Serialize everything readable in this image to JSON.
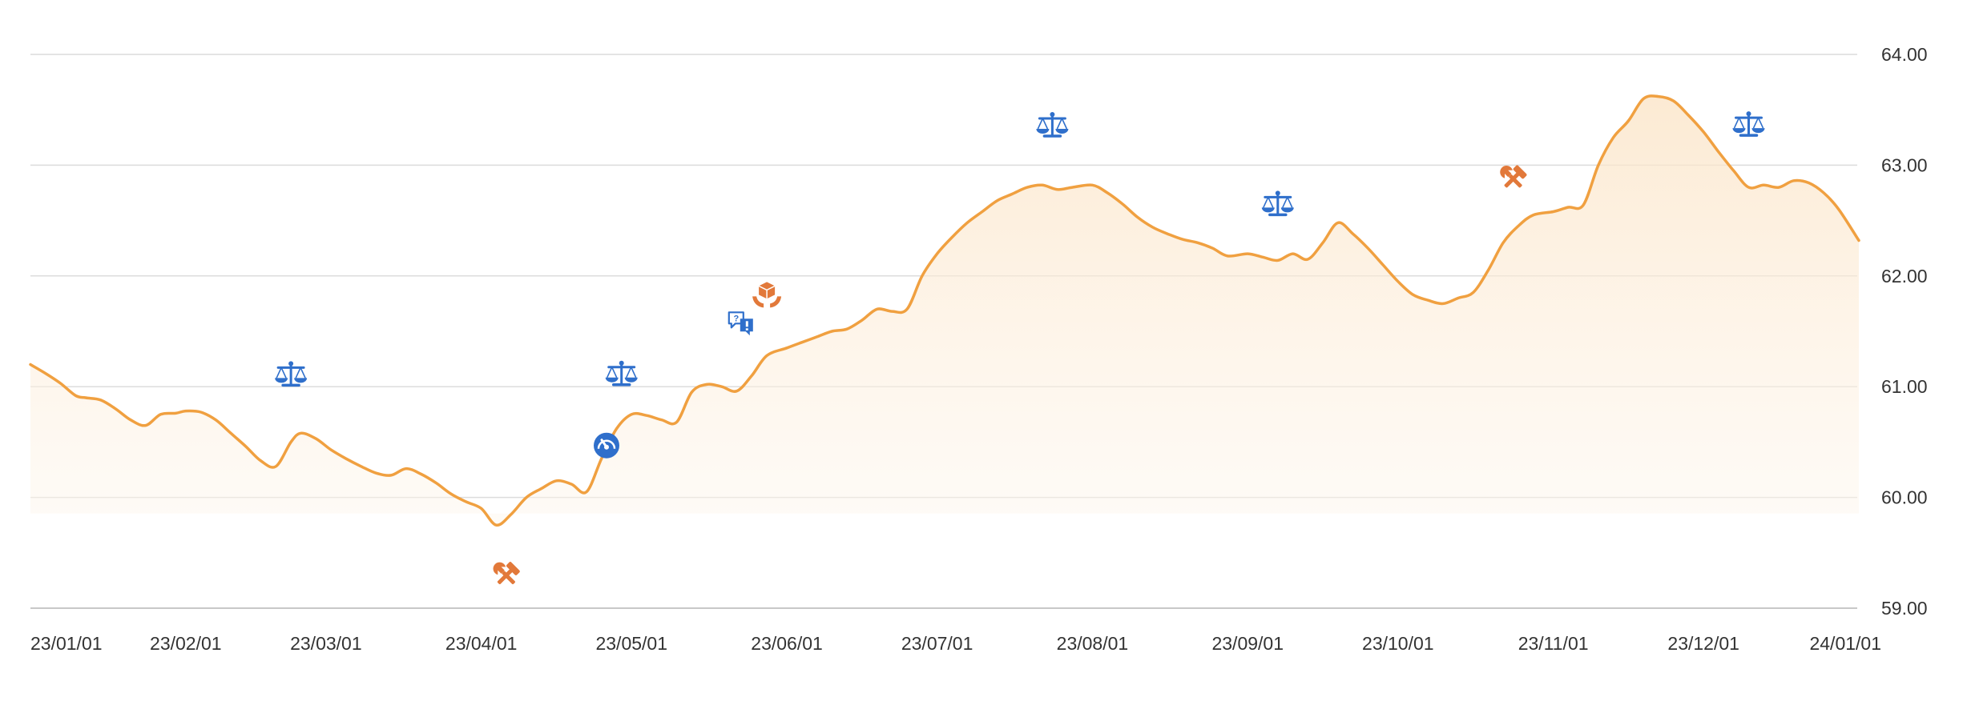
{
  "chart_data": {
    "type": "area",
    "title": "",
    "xlabel": "",
    "ylabel": "",
    "ylim": [
      59.0,
      64.0
    ],
    "y_ticks": [
      "64.00",
      "63.00",
      "62.00",
      "61.00",
      "60.00",
      "59.00"
    ],
    "y_axis_position": "right",
    "x_ticks": [
      "23/01/01",
      "23/02/01",
      "23/03/01",
      "23/04/01",
      "23/05/01",
      "23/06/01",
      "23/07/01",
      "23/08/01",
      "23/09/01",
      "23/10/01",
      "23/11/01",
      "23/12/01",
      "24/01/01"
    ],
    "grid": true,
    "legend": "none",
    "colors": {
      "line": "#f0a040",
      "fill": "#fdf0e0",
      "grid": "#dcdcdc",
      "icon_blue": "#2f6fcb",
      "icon_orange": "#e2793a"
    },
    "series": [
      {
        "x": [
          "2023-01-01",
          "2023-01-04",
          "2023-01-07",
          "2023-01-10",
          "2023-01-12",
          "2023-01-15",
          "2023-01-18",
          "2023-01-21",
          "2023-01-24",
          "2023-01-27",
          "2023-01-30",
          "2023-02-01",
          "2023-02-04",
          "2023-02-07",
          "2023-02-10",
          "2023-02-13",
          "2023-02-16",
          "2023-02-19",
          "2023-02-22",
          "2023-02-24",
          "2023-02-27",
          "2023-03-02",
          "2023-03-05",
          "2023-03-08",
          "2023-03-11",
          "2023-03-14",
          "2023-03-17",
          "2023-03-20",
          "2023-03-23",
          "2023-03-26",
          "2023-03-29",
          "2023-04-01",
          "2023-04-04",
          "2023-04-07",
          "2023-04-10",
          "2023-04-13",
          "2023-04-16",
          "2023-04-19",
          "2023-04-22",
          "2023-04-25",
          "2023-04-28",
          "2023-05-01",
          "2023-05-04",
          "2023-05-07",
          "2023-05-10",
          "2023-05-13",
          "2023-05-16",
          "2023-05-19",
          "2023-05-22",
          "2023-05-25",
          "2023-05-28",
          "2023-06-01",
          "2023-06-04",
          "2023-06-07",
          "2023-06-10",
          "2023-06-13",
          "2023-06-16",
          "2023-06-19",
          "2023-06-22",
          "2023-06-25",
          "2023-06-28",
          "2023-07-01",
          "2023-07-04",
          "2023-07-07",
          "2023-07-10",
          "2023-07-13",
          "2023-07-16",
          "2023-07-19",
          "2023-07-22",
          "2023-07-25",
          "2023-07-28",
          "2023-08-01",
          "2023-08-04",
          "2023-08-07",
          "2023-08-10",
          "2023-08-13",
          "2023-08-16",
          "2023-08-19",
          "2023-08-22",
          "2023-08-25",
          "2023-08-28",
          "2023-09-01",
          "2023-09-04",
          "2023-09-07",
          "2023-09-10",
          "2023-09-13",
          "2023-09-16",
          "2023-09-19",
          "2023-09-22",
          "2023-09-25",
          "2023-09-28",
          "2023-10-01",
          "2023-10-04",
          "2023-10-07",
          "2023-10-10",
          "2023-10-13",
          "2023-10-16",
          "2023-10-19",
          "2023-10-22",
          "2023-10-25",
          "2023-10-28",
          "2023-11-01",
          "2023-11-04",
          "2023-11-07",
          "2023-11-10",
          "2023-11-13",
          "2023-11-16",
          "2023-11-19",
          "2023-11-22",
          "2023-11-25",
          "2023-11-28",
          "2023-12-01",
          "2023-12-04",
          "2023-12-07",
          "2023-12-10",
          "2023-12-13",
          "2023-12-16",
          "2023-12-19",
          "2023-12-22",
          "2023-12-25",
          "2023-12-28",
          "2024-01-01"
        ],
        "values": [
          61.2,
          61.12,
          61.03,
          60.92,
          60.9,
          60.88,
          60.8,
          60.7,
          60.65,
          60.75,
          60.76,
          60.78,
          60.77,
          60.7,
          60.58,
          60.46,
          60.33,
          60.28,
          60.5,
          60.58,
          60.53,
          60.43,
          60.35,
          60.28,
          60.22,
          60.2,
          60.26,
          60.21,
          60.13,
          60.03,
          59.96,
          59.9,
          59.75,
          59.85,
          60.0,
          60.08,
          60.15,
          60.12,
          60.05,
          60.35,
          60.62,
          60.75,
          60.74,
          60.7,
          60.68,
          60.95,
          61.02,
          61.0,
          60.96,
          61.1,
          61.28,
          61.35,
          61.4,
          61.45,
          61.5,
          61.52,
          61.6,
          61.7,
          61.68,
          61.7,
          62.0,
          62.2,
          62.35,
          62.48,
          62.58,
          62.68,
          62.74,
          62.8,
          62.82,
          62.78,
          62.8,
          62.82,
          62.75,
          62.65,
          62.53,
          62.44,
          62.38,
          62.33,
          62.3,
          62.25,
          62.18,
          62.2,
          62.17,
          62.14,
          62.2,
          62.15,
          62.3,
          62.48,
          62.38,
          62.25,
          62.1,
          61.95,
          61.83,
          61.78,
          61.75,
          61.8,
          61.85,
          62.05,
          62.3,
          62.45,
          62.55,
          62.58,
          62.62,
          62.64,
          63.0,
          63.25,
          63.4,
          63.6,
          63.62,
          63.58,
          63.45,
          63.3,
          63.12,
          62.95,
          62.8,
          62.82,
          62.8,
          62.86,
          62.84,
          62.75,
          62.6,
          62.32
        ]
      }
    ],
    "event_markers": [
      {
        "icon": "scale-icon",
        "date": "2023-02-22",
        "color": "#2f6fcb"
      },
      {
        "icon": "tools-icon",
        "date": "2023-04-06",
        "color": "#e2793a"
      },
      {
        "icon": "scale-icon",
        "date": "2023-04-29",
        "color": "#2f6fcb"
      },
      {
        "icon": "gauge-icon",
        "date": "2023-04-26",
        "color": "#2f6fcb"
      },
      {
        "icon": "chat-alert-icon",
        "date": "2023-05-23",
        "color": "#2f6fcb"
      },
      {
        "icon": "box-hand-icon",
        "date": "2023-05-28",
        "color": "#e2793a"
      },
      {
        "icon": "scale-icon",
        "date": "2023-07-24",
        "color": "#2f6fcb"
      },
      {
        "icon": "scale-icon",
        "date": "2023-09-07",
        "color": "#2f6fcb"
      },
      {
        "icon": "tools-icon",
        "date": "2023-10-24",
        "color": "#e2793a"
      },
      {
        "icon": "scale-icon",
        "date": "2023-12-10",
        "color": "#2f6fcb"
      }
    ]
  }
}
